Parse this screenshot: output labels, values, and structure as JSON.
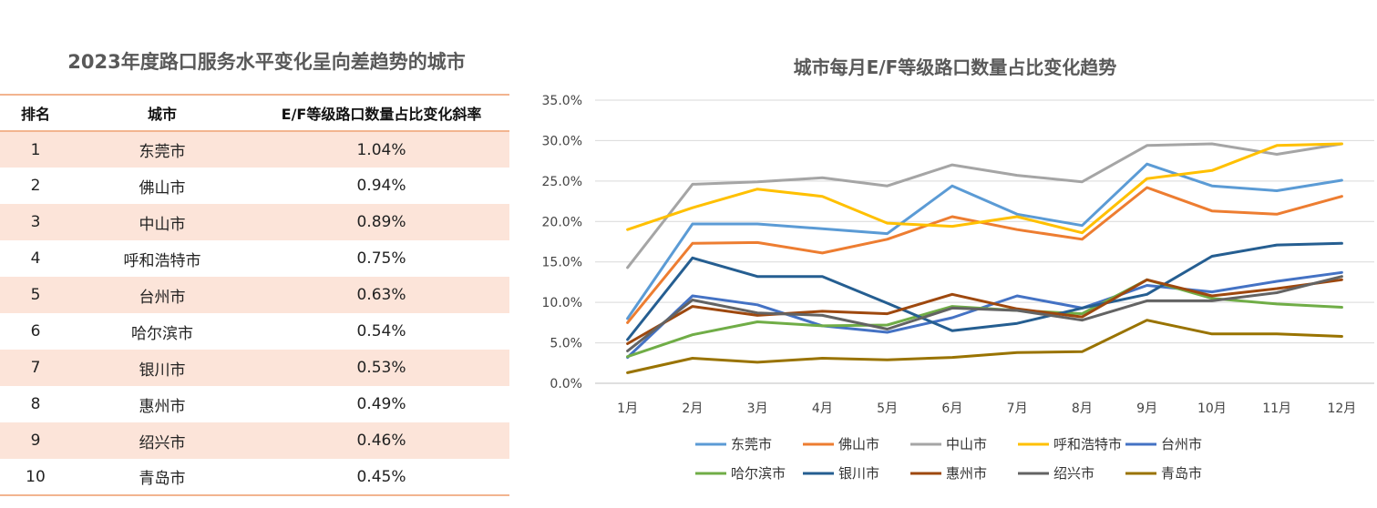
{
  "table": {
    "title": "2023年度路口服务水平变化呈向差趋势的城市",
    "headers": [
      "排名",
      "城市",
      "E/F等级路口数量占比变化斜率"
    ],
    "rows": [
      {
        "rank": "1",
        "city": "东莞市",
        "slope": "1.04%"
      },
      {
        "rank": "2",
        "city": "佛山市",
        "slope": "0.94%"
      },
      {
        "rank": "3",
        "city": "中山市",
        "slope": "0.89%"
      },
      {
        "rank": "4",
        "city": "呼和浩特市",
        "slope": "0.75%"
      },
      {
        "rank": "5",
        "city": "台州市",
        "slope": "0.63%"
      },
      {
        "rank": "6",
        "city": "哈尔滨市",
        "slope": "0.54%"
      },
      {
        "rank": "7",
        "city": "银川市",
        "slope": "0.53%"
      },
      {
        "rank": "8",
        "city": "惠州市",
        "slope": "0.49%"
      },
      {
        "rank": "9",
        "city": "绍兴市",
        "slope": "0.46%"
      },
      {
        "rank": "10",
        "city": "青岛市",
        "slope": "0.45%"
      }
    ]
  },
  "chart_data": {
    "type": "line",
    "title": "城市每月E/F等级路口数量占比变化趋势",
    "xlabel": "",
    "ylabel": "",
    "categories": [
      "1月",
      "2月",
      "3月",
      "4月",
      "5月",
      "6月",
      "7月",
      "8月",
      "9月",
      "10月",
      "11月",
      "12月"
    ],
    "ylim": [
      0,
      35
    ],
    "yticks": [
      "0.0%",
      "5.0%",
      "10.0%",
      "15.0%",
      "20.0%",
      "25.0%",
      "30.0%",
      "35.0%"
    ],
    "grid": true,
    "legend": "bottom",
    "series": [
      {
        "name": "东莞市",
        "color": "#5b9bd5",
        "values": [
          8.0,
          19.7,
          19.7,
          19.1,
          18.5,
          24.4,
          20.9,
          19.5,
          27.1,
          24.4,
          23.8,
          25.1
        ]
      },
      {
        "name": "佛山市",
        "color": "#ed7d31",
        "values": [
          7.5,
          17.3,
          17.4,
          16.1,
          17.8,
          20.6,
          19.0,
          17.8,
          24.2,
          21.3,
          20.9,
          23.1
        ]
      },
      {
        "name": "中山市",
        "color": "#a5a5a5",
        "values": [
          14.3,
          24.6,
          24.9,
          25.4,
          24.4,
          27.0,
          25.7,
          24.9,
          29.4,
          29.6,
          28.3,
          29.6
        ]
      },
      {
        "name": "呼和浩特市",
        "color": "#ffc000",
        "values": [
          19.0,
          21.7,
          24.0,
          23.1,
          19.8,
          19.4,
          20.6,
          18.6,
          25.3,
          26.3,
          29.4,
          29.6
        ]
      },
      {
        "name": "台州市",
        "color": "#4472c4",
        "values": [
          3.2,
          10.8,
          9.7,
          7.1,
          6.3,
          8.1,
          10.8,
          9.3,
          12.1,
          11.3,
          12.6,
          13.7
        ]
      },
      {
        "name": "哈尔滨市",
        "color": "#70ad47",
        "values": [
          3.3,
          6.0,
          7.6,
          7.1,
          7.2,
          9.5,
          9.0,
          8.6,
          12.8,
          10.5,
          9.8,
          9.4
        ]
      },
      {
        "name": "银川市",
        "color": "#255e91",
        "values": [
          5.4,
          15.5,
          13.2,
          13.2,
          9.9,
          6.5,
          7.4,
          9.3,
          11.0,
          15.7,
          17.1,
          17.3
        ]
      },
      {
        "name": "惠州市",
        "color": "#9e480e",
        "values": [
          4.9,
          9.5,
          8.4,
          8.9,
          8.6,
          11.0,
          9.2,
          8.2,
          12.8,
          10.8,
          11.7,
          12.8
        ]
      },
      {
        "name": "绍兴市",
        "color": "#636363",
        "values": [
          4.0,
          10.3,
          8.7,
          8.4,
          6.7,
          9.3,
          9.0,
          7.8,
          10.2,
          10.2,
          11.2,
          13.2
        ]
      },
      {
        "name": "青岛市",
        "color": "#997300",
        "values": [
          1.3,
          3.1,
          2.6,
          3.1,
          2.9,
          3.2,
          3.8,
          3.9,
          7.8,
          6.1,
          6.1,
          5.8
        ]
      }
    ]
  }
}
